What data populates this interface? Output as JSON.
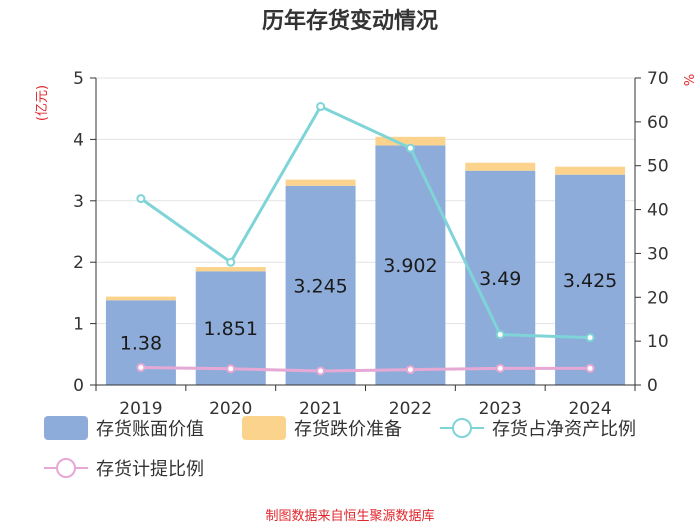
{
  "chart_data": {
    "type": "bar",
    "title": "历年存货变动情况",
    "source": "制图数据来自恒生聚源数据库",
    "categories": [
      "2019",
      "2020",
      "2021",
      "2022",
      "2023",
      "2024"
    ],
    "y_left": {
      "unit": "(亿元)",
      "ylim": [
        0,
        5
      ],
      "ticks": [
        0,
        1,
        2,
        3,
        4,
        5
      ]
    },
    "y_right": {
      "unit": "%",
      "ylim": [
        0,
        70
      ],
      "ticks": [
        0,
        10,
        20,
        30,
        40,
        50,
        60,
        70
      ]
    },
    "grid": true,
    "legend_position": "bottom",
    "series": [
      {
        "name": "存货账面价值",
        "type": "bar",
        "axis": "left",
        "stack": "s",
        "color": "#8eacd9",
        "values": [
          1.38,
          1.851,
          3.245,
          3.902,
          3.49,
          3.425
        ],
        "labels": [
          "1.38",
          "1.851",
          "3.245",
          "3.902",
          "3.49",
          "3.425"
        ]
      },
      {
        "name": "存货跌价准备",
        "type": "bar",
        "axis": "left",
        "stack": "s",
        "color": "#fbd38d",
        "values": [
          0.06,
          0.07,
          0.1,
          0.14,
          0.13,
          0.13
        ]
      },
      {
        "name": "存货占净资产比例",
        "type": "line",
        "axis": "right",
        "color": "#7fd4d8",
        "values": [
          42.5,
          28.0,
          63.5,
          54.0,
          11.5,
          10.8
        ]
      },
      {
        "name": "存货计提比例",
        "type": "line",
        "axis": "right",
        "color": "#e6a8d4",
        "values": [
          4.0,
          3.7,
          3.2,
          3.5,
          3.8,
          3.8
        ]
      }
    ]
  }
}
